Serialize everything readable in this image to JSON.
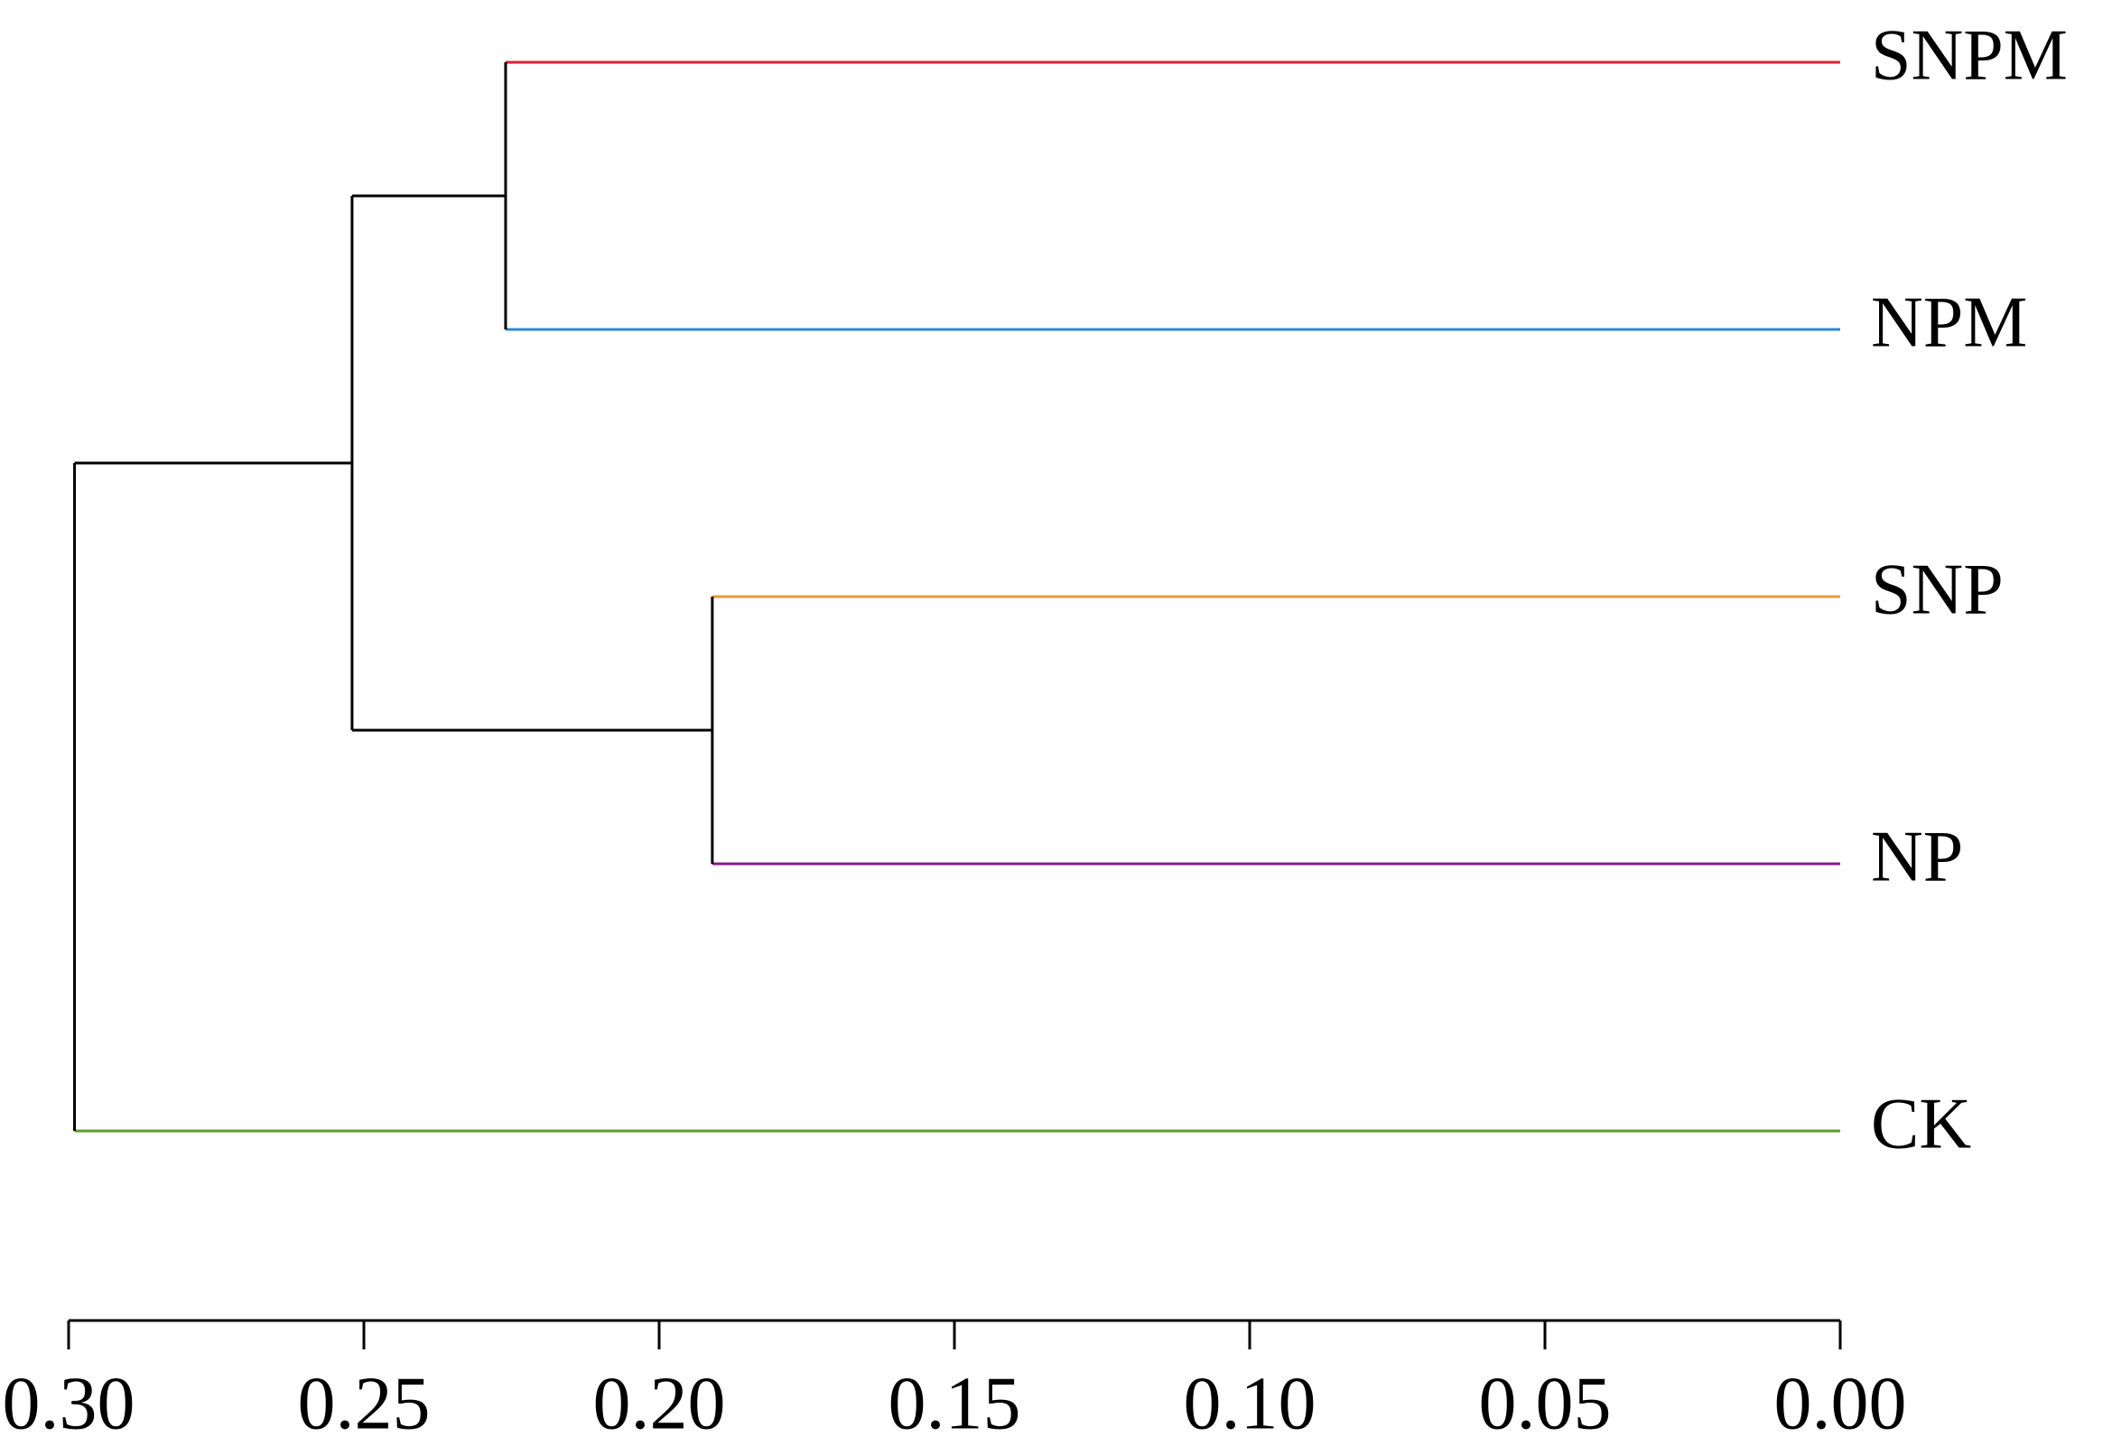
{
  "chart_data": {
    "type": "dendrogram",
    "leaves": [
      {
        "name": "SNPM",
        "color": "#e0202f"
      },
      {
        "name": "NPM",
        "color": "#2a8ad6"
      },
      {
        "name": "SNP",
        "color": "#e89a3a"
      },
      {
        "name": "NP",
        "color": "#8b1a8b"
      },
      {
        "name": "CK",
        "color": "#5a9e2a"
      }
    ],
    "merges": [
      {
        "children": [
          0,
          1
        ],
        "height": 0.226
      },
      {
        "children": [
          2,
          3
        ],
        "height": 0.191
      },
      {
        "children": [
          5,
          6
        ],
        "height": 0.252
      },
      {
        "children": [
          7,
          4
        ],
        "height": 0.299
      }
    ],
    "xlim": [
      0.3,
      0.0
    ],
    "xticks": [
      {
        "value": 0.3,
        "label": "0.30"
      },
      0.25,
      {
        "value": 0.2,
        "label": "0.20"
      },
      0.15,
      {
        "value": 0.1,
        "label": "0.10"
      },
      0.05,
      {
        "value": 0.0,
        "label": "0.00"
      }
    ]
  }
}
